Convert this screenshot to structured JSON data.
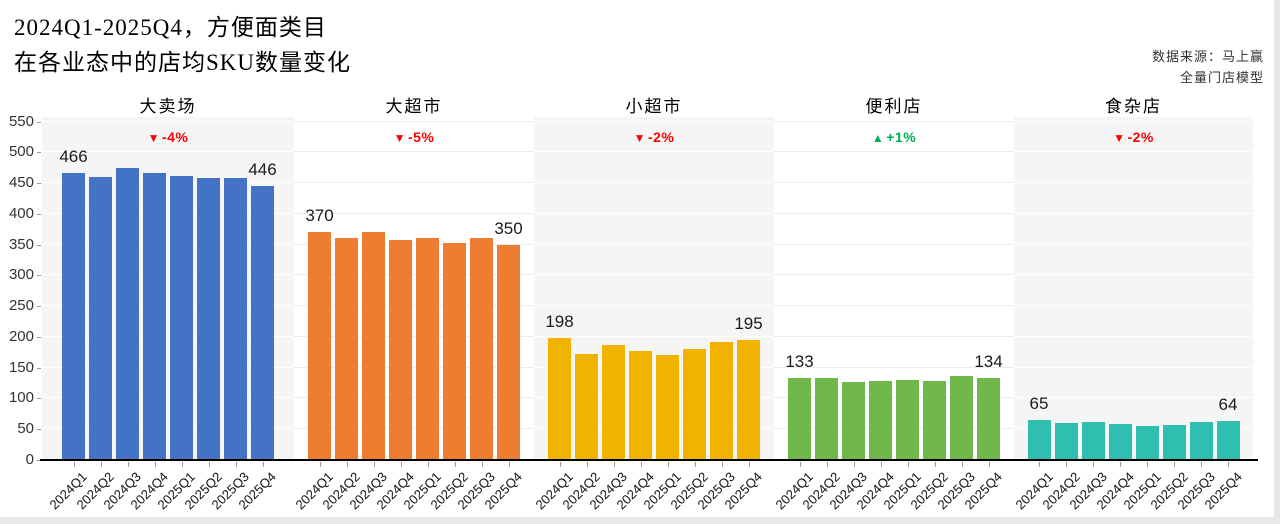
{
  "title": {
    "line1": "2024Q1-2025Q4，方便面类目",
    "line2": "在各业态中的店均SKU数量变化"
  },
  "source": {
    "line1": "数据来源：马上赢",
    "line2": "全量门店模型"
  },
  "y_axis": {
    "ticks": [
      0,
      50,
      100,
      150,
      200,
      250,
      300,
      350,
      400,
      450,
      500,
      550
    ]
  },
  "badge_colors": {
    "down": "#ff0000",
    "up": "#00b050"
  },
  "chart_data": {
    "type": "bar",
    "title": "2024Q1-2025Q4，方便面类目 在各业态中的店均SKU数量变化",
    "xlabel": "",
    "ylabel": "",
    "ylim": [
      0,
      550
    ],
    "grid": true,
    "categories": [
      "2024Q1",
      "2024Q2",
      "2024Q3",
      "2024Q4",
      "2025Q1",
      "2025Q2",
      "2025Q3",
      "2025Q4"
    ],
    "panels": [
      {
        "name": "大卖场",
        "slug": "hypermarket",
        "change_label": "-4%",
        "trend": "down",
        "arrow": "▼",
        "color": "#4472c4",
        "values": [
          466,
          460,
          474,
          466,
          462,
          459,
          459,
          446
        ],
        "first_label": "466",
        "last_label": "446"
      },
      {
        "name": "大超市",
        "slug": "large-supermarket",
        "change_label": "-5%",
        "trend": "down",
        "arrow": "▼",
        "color": "#ed7d31",
        "values": [
          370,
          361,
          371,
          358,
          360,
          352,
          360,
          350
        ],
        "first_label": "370",
        "last_label": "350"
      },
      {
        "name": "小超市",
        "slug": "small-supermarket",
        "change_label": "-2%",
        "trend": "down",
        "arrow": "▼",
        "color": "#f0b400",
        "values": [
          198,
          173,
          187,
          177,
          170,
          181,
          192,
          195
        ],
        "first_label": "198",
        "last_label": "195"
      },
      {
        "name": "便利店",
        "slug": "convenience-store",
        "change_label": "+1%",
        "trend": "up",
        "arrow": "▲",
        "color": "#70b84a",
        "values": [
          133,
          133,
          126,
          128,
          130,
          128,
          136,
          134
        ],
        "first_label": "133",
        "last_label": "134"
      },
      {
        "name": "食杂店",
        "slug": "grocery-store",
        "change_label": "-2%",
        "trend": "down",
        "arrow": "▼",
        "color": "#2fbfb0",
        "values": [
          65,
          60,
          62,
          59,
          55,
          57,
          62,
          64
        ],
        "first_label": "65",
        "last_label": "64"
      }
    ]
  }
}
